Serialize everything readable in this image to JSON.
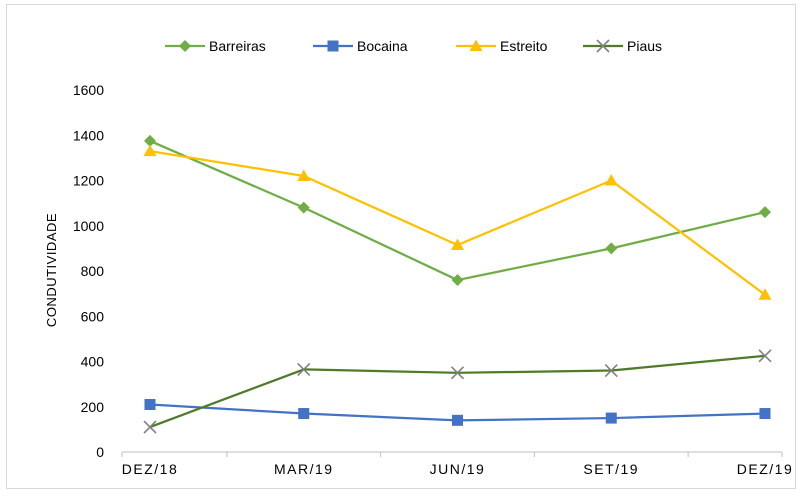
{
  "chart_data": {
    "type": "line",
    "title": "",
    "xlabel": "",
    "ylabel": "CONDUTIVIDADE",
    "categories": [
      "DEZ/18",
      "MAR/19",
      "JUN/19",
      "SET/19",
      "DEZ/19"
    ],
    "ylim": [
      0,
      1600
    ],
    "yticks": [
      0,
      200,
      400,
      600,
      800,
      1000,
      1200,
      1400,
      1600
    ],
    "grid": false,
    "legend_position": "top",
    "series": [
      {
        "name": "Barreiras",
        "color": "#70AD47",
        "marker": "diamond",
        "values": [
          1375,
          1080,
          760,
          900,
          1060
        ]
      },
      {
        "name": "Bocaina",
        "color": "#4472C4",
        "marker": "square",
        "values": [
          210,
          170,
          140,
          150,
          170
        ]
      },
      {
        "name": "Estreito",
        "color": "#FFC000",
        "marker": "triangle",
        "values": [
          1330,
          1220,
          915,
          1200,
          695
        ]
      },
      {
        "name": "Piaus",
        "color": "#4F7A28",
        "marker": "x",
        "values": [
          110,
          365,
          350,
          360,
          425
        ]
      }
    ]
  }
}
